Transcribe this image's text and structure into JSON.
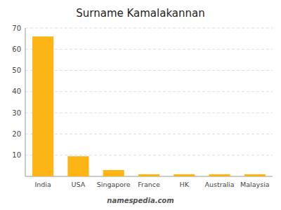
{
  "chart_data": {
    "type": "bar",
    "title": "Surname Kamalakannan",
    "categories": [
      "India",
      "USA",
      "Singapore",
      "France",
      "HK",
      "Australia",
      "Malaysia"
    ],
    "values": [
      66,
      9.5,
      3,
      1,
      1,
      1,
      1
    ],
    "color": "#FDB515",
    "ylim": [
      0,
      70
    ],
    "yticks": [
      10,
      20,
      30,
      40,
      50,
      60,
      70
    ],
    "grid": true,
    "annotations": [
      "namespedia.com"
    ]
  }
}
